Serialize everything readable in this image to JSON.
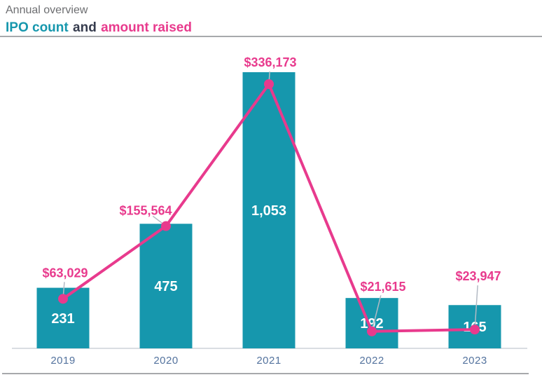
{
  "header": {
    "title": "Annual overview",
    "subtitle": {
      "ipo": "IPO count",
      "and": "and",
      "amount": "amount raised"
    }
  },
  "colors": {
    "teal": "#1697ad",
    "pink": "#e83a8d",
    "title_gray": "#6d6e71",
    "navy": "#363c4e",
    "axis_label_blue": "#54739e",
    "axis_line": "#d9dde2",
    "divider_gray": "#a7a9ac",
    "leader_gray": "#b3bac4",
    "bar_label_white": "#ffffff"
  },
  "chart_data": {
    "type": "bar+line combo",
    "title": "Annual overview",
    "subtitle": "IPO count and amount raised",
    "categories": [
      "2019",
      "2020",
      "2021",
      "2022",
      "2023"
    ],
    "series": [
      {
        "name": "IPO count",
        "type": "bar",
        "values": [
          231,
          475,
          1053,
          192,
          165
        ],
        "labels": [
          "231",
          "475",
          "1,053",
          "192",
          "165"
        ],
        "color": "#1697ad"
      },
      {
        "name": "amount raised",
        "type": "line",
        "values": [
          63029,
          155564,
          336173,
          21615,
          23947
        ],
        "labels": [
          "$63,029",
          "$155,564",
          "$336,173",
          "$21,615",
          "$23,947"
        ],
        "color": "#e83a8d"
      }
    ],
    "gridlines": false,
    "y_axis_visible": false,
    "legend_position": "inline-in-subtitle",
    "data_labels": "all points labeled"
  }
}
